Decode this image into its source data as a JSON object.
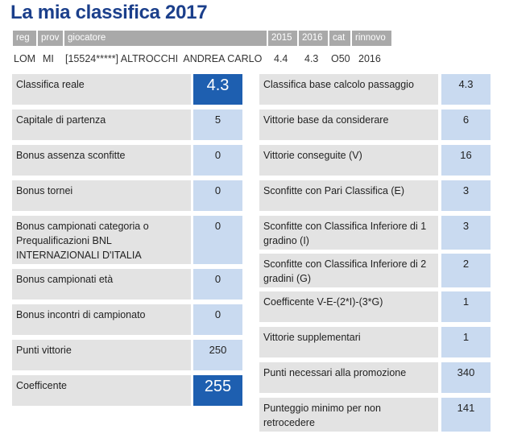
{
  "title": "La mia classifica 2017",
  "header": {
    "columns": [
      "reg",
      "prov",
      "giocatore",
      "2015",
      "2016",
      "cat",
      "rinnovo"
    ]
  },
  "player": {
    "reg": "LOM",
    "prov": "MI",
    "giocatore": "[15524*****] ALTROCCHI  ANDREA CARLO",
    "y2015": "4.4",
    "y2016": "4.3",
    "cat": "O50",
    "rinnovo": "2016"
  },
  "left": [
    {
      "label": "Classifica reale",
      "value": "4.3"
    },
    {
      "label": "Capitale di partenza",
      "value": "5"
    },
    {
      "label": "Bonus assenza sconfitte",
      "value": "0"
    },
    {
      "label": "Bonus tornei",
      "value": "0"
    },
    {
      "label": "Bonus campionati categoria o Prequalificazioni BNL INTERNAZIONALI D'ITALIA",
      "value": "0"
    },
    {
      "label": "Bonus campionati età",
      "value": "0"
    },
    {
      "label": "Bonus incontri di campionato",
      "value": "0"
    },
    {
      "label": "Punti vittorie",
      "value": "250"
    },
    {
      "label": "Coefficente",
      "value": "255"
    }
  ],
  "right": [
    {
      "label": "Classifica base calcolo passaggio",
      "value": "4.3"
    },
    {
      "label": "Vittorie base da considerare",
      "value": "6"
    },
    {
      "label": "Vittorie conseguite (V)",
      "value": "16"
    },
    {
      "label": "Sconfitte con Pari Classifica (E)",
      "value": "3"
    },
    {
      "label": "Sconfitte con Classifica Inferiore di 1 gradino (I)",
      "value": "3"
    },
    {
      "label": "Sconfitte con Classifica Inferiore di 2 gradini (G)",
      "value": "2"
    },
    {
      "label": "Coefficente V-E-(2*I)-(3*G)",
      "value": "1"
    },
    {
      "label": "Vittorie supplementari",
      "value": "1"
    },
    {
      "label": "Punti necessari alla promozione",
      "value": "340"
    },
    {
      "label": "Punteggio minimo per non retrocedere",
      "value": "141"
    }
  ],
  "colors": {
    "title": "#1b3f8b",
    "header_bg": "#a9a9a9",
    "label_bg": "#e3e3e3",
    "value_bg": "#c9daf0",
    "highlight_bg": "#1e5fb0"
  }
}
